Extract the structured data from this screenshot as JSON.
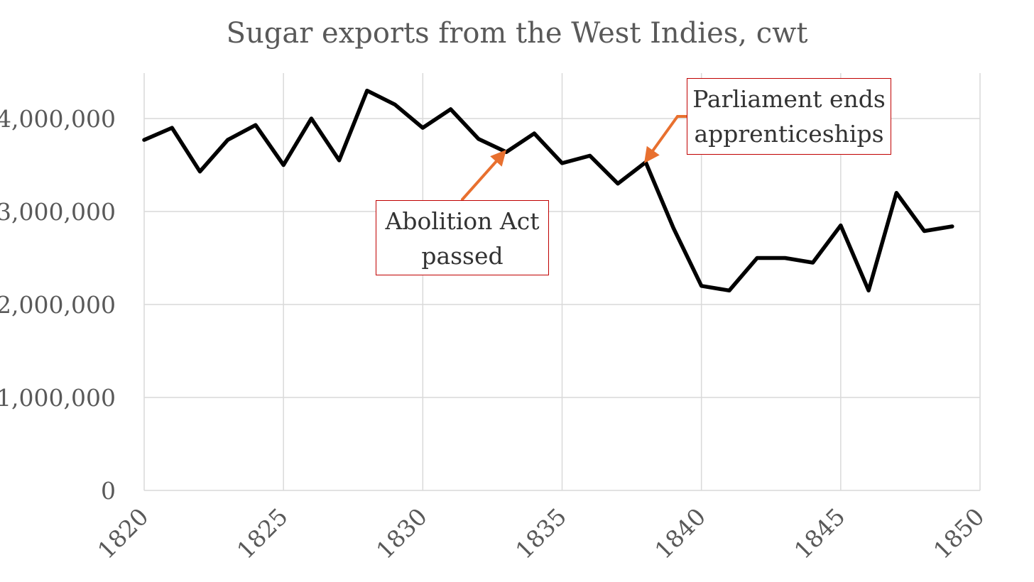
{
  "chart_data": {
    "type": "line",
    "title": "Sugar exports from the West Indies, cwt",
    "xlabel": "",
    "ylabel": "",
    "xlim": [
      1820,
      1850
    ],
    "ylim": [
      0,
      4500000
    ],
    "x_ticks": [
      "1820",
      "1825",
      "1830",
      "1835",
      "1840",
      "1845",
      "1850"
    ],
    "y_ticks": [
      "0",
      "1,000,000",
      "2,000,000",
      "3,000,000",
      "4,000,000"
    ],
    "grid": true,
    "legend": "none",
    "series": [
      {
        "x": [
          1820,
          1821,
          1822,
          1823,
          1824,
          1825,
          1826,
          1827,
          1828,
          1829,
          1830,
          1831,
          1832,
          1833,
          1834,
          1835,
          1836,
          1837,
          1838,
          1839,
          1840,
          1841,
          1842,
          1843,
          1844,
          1845,
          1846,
          1847,
          1848,
          1849
        ],
        "values": [
          3770000,
          3900000,
          3430000,
          3770000,
          3930000,
          3500000,
          4000000,
          3550000,
          4300000,
          4150000,
          3900000,
          4100000,
          3780000,
          3640000,
          3840000,
          3520000,
          3600000,
          3300000,
          3530000,
          2820000,
          2200000,
          2150000,
          2500000,
          2500000,
          2450000,
          2850000,
          2150000,
          3200000,
          2790000,
          2840000
        ]
      }
    ],
    "annotations": [
      {
        "lines": [
          "Abolition Act",
          "passed"
        ],
        "x": 1833,
        "y": 3640000
      },
      {
        "lines": [
          "Parliament ends",
          "apprenticeships"
        ],
        "x": 1838,
        "y": 3530000
      }
    ]
  },
  "colors": {
    "line": "#000000",
    "arrow": "#e8702f",
    "annotation_border": "#c00000",
    "grid": "#d9d9d9",
    "text": "#595959"
  }
}
